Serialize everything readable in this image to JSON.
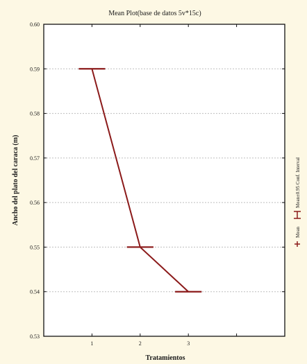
{
  "chart_data": {
    "type": "line",
    "title": "Mean Plot(base de datos 5v*15c)",
    "xlabel": "Tratamientos",
    "ylabel": "Ancho del plato del caraca (m)",
    "x": [
      1,
      2,
      3
    ],
    "xlim": [
      0,
      5
    ],
    "ylim": [
      0.53,
      0.6
    ],
    "x_ticks": [
      "1",
      "2",
      "3"
    ],
    "y_ticks": [
      "0.53",
      "0.54",
      "0.55",
      "0.56",
      "0.57",
      "0.58",
      "0.59",
      "0.60"
    ],
    "series": [
      {
        "values": [
          0.59,
          0.55,
          0.54
        ],
        "ci_low": [
          0.59,
          0.55,
          0.54
        ],
        "ci_high": [
          0.59,
          0.55,
          0.54
        ]
      }
    ],
    "legend": {
      "position": "right",
      "entries": [
        "Mean",
        "Mean±0.95 Conf. Interval"
      ]
    },
    "grid": true,
    "colors": {
      "series": "#8b1a1a",
      "grid": "#bdbdbd",
      "background": "#fdf8e4",
      "plot_bg": "#ffffff"
    }
  }
}
